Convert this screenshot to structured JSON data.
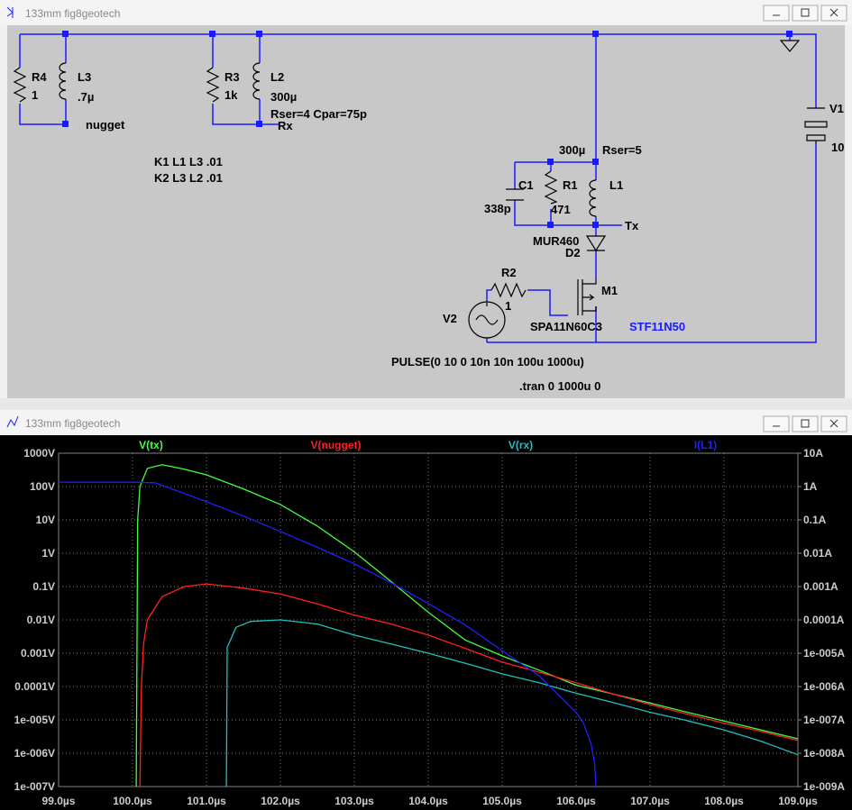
{
  "schematic_window": {
    "title": "133mm fig8geotech"
  },
  "schematic": {
    "labels": [
      "R4",
      "1",
      "L3",
      ".7µ",
      "nugget",
      "R3",
      "1k",
      "L2",
      "300µ",
      "Rser=4 Cpar=75p",
      "Rx",
      "K1 L1 L3 .01",
      "K2 L3 L2 .01",
      "V1",
      "10",
      "300µ",
      "Rser=5",
      "C1",
      "R1",
      "L1",
      "338p",
      "471",
      "Tx",
      "MUR460",
      "D2",
      "R2",
      "1",
      "M1",
      "V2",
      "SPA11N60C3",
      "STF11N50",
      "PULSE(0 10 0 10n 10n 100u 1000u)",
      ".tran 0 1000u 0"
    ]
  },
  "plot_window": {
    "title": "133mm fig8geotech"
  },
  "chart_data": {
    "type": "line",
    "ylog": true,
    "grid": true,
    "xlim": [
      99,
      109
    ],
    "xticks": [
      {
        "value": 99,
        "label": "99.0µs"
      },
      {
        "value": 100,
        "label": "100.0µs"
      },
      {
        "value": 101,
        "label": "101.0µs"
      },
      {
        "value": 102,
        "label": "102.0µs"
      },
      {
        "value": 103,
        "label": "103.0µs"
      },
      {
        "value": 104,
        "label": "104.0µs"
      },
      {
        "value": 105,
        "label": "105.0µs"
      },
      {
        "value": 106,
        "label": "106.0µs"
      },
      {
        "value": 107,
        "label": "107.0µs"
      },
      {
        "value": 108,
        "label": "108.0µs"
      },
      {
        "value": 109,
        "label": "109.0µs"
      }
    ],
    "ylim": [
      1e-07,
      1000
    ],
    "yticks": [
      {
        "value": 1000,
        "label": "1000V"
      },
      {
        "value": 100,
        "label": "100V"
      },
      {
        "value": 10,
        "label": "10V"
      },
      {
        "value": 1,
        "label": "1V"
      },
      {
        "value": 0.1,
        "label": "0.1V"
      },
      {
        "value": 0.01,
        "label": "0.01V"
      },
      {
        "value": 0.001,
        "label": "0.001V"
      },
      {
        "value": 0.0001,
        "label": "0.0001V"
      },
      {
        "value": 1e-05,
        "label": "1e-005V"
      },
      {
        "value": 1e-06,
        "label": "1e-006V"
      },
      {
        "value": 1e-07,
        "label": "1e-007V"
      }
    ],
    "y2lim": [
      1e-09,
      10
    ],
    "y2ticks": [
      {
        "value": 10,
        "label": "10A"
      },
      {
        "value": 1,
        "label": "1A"
      },
      {
        "value": 0.1,
        "label": "0.1A"
      },
      {
        "value": 0.01,
        "label": "0.01A"
      },
      {
        "value": 0.001,
        "label": "0.001A"
      },
      {
        "value": 0.0001,
        "label": "0.0001A"
      },
      {
        "value": 1e-05,
        "label": "1e-005A"
      },
      {
        "value": 1e-06,
        "label": "1e-006A"
      },
      {
        "value": 1e-07,
        "label": "1e-007A"
      },
      {
        "value": 1e-08,
        "label": "1e-008A"
      },
      {
        "value": 1e-09,
        "label": "1e-009A"
      }
    ],
    "series": [
      {
        "name": "V(tx)",
        "color": "#40ff40",
        "x": [
          100.05,
          100.07,
          100.1,
          100.2,
          100.4,
          100.7,
          101,
          101.5,
          102,
          102.5,
          103,
          103.5,
          104,
          104.5,
          105,
          105.5,
          106,
          106.5,
          107,
          107.5,
          108,
          108.5,
          109
        ],
        "values": [
          1e-07,
          10,
          100,
          350,
          450,
          330,
          224,
          85,
          29,
          6.5,
          1.1,
          0.14,
          0.017,
          0.0025,
          0.00083,
          0.00031,
          0.00011,
          6e-05,
          3.2e-05,
          1.7e-05,
          9.3e-06,
          5e-06,
          2.7e-06
        ]
      },
      {
        "name": "V(nugget)",
        "color": "#ff2020",
        "x": [
          100.1,
          100.12,
          100.15,
          100.2,
          100.4,
          100.7,
          101,
          101.5,
          102,
          102.5,
          103,
          103.5,
          104,
          104.5,
          105,
          105.5,
          106,
          106.5,
          107,
          107.5,
          108,
          108.5,
          109
        ],
        "values": [
          1e-07,
          0.0001,
          0.002,
          0.01,
          0.05,
          0.1,
          0.12,
          0.09,
          0.06,
          0.03,
          0.014,
          0.0075,
          0.0035,
          0.0014,
          0.00054,
          0.00027,
          0.00013,
          6e-05,
          2.9e-05,
          1.5e-05,
          8e-06,
          4.5e-06,
          2.4e-06
        ]
      },
      {
        "name": "V(rx)",
        "color": "#20c0c0",
        "x": [
          101.27,
          101.28,
          101.4,
          101.6,
          102,
          102.5,
          103,
          103.5,
          104,
          104.5,
          105,
          105.5,
          106,
          106.5,
          107,
          107.5,
          108,
          108.5,
          109
        ],
        "values": [
          1e-07,
          0.0015,
          0.006,
          0.009,
          0.01,
          0.0075,
          0.0035,
          0.0019,
          0.001,
          0.0005,
          0.00024,
          0.00013,
          6.3e-05,
          3.3e-05,
          1.7e-05,
          9.5e-06,
          5e-06,
          2.3e-06,
          9e-07
        ]
      },
      {
        "name": "I(L1)",
        "color": "#2020ff",
        "axis": "y2",
        "x": [
          99,
          100,
          100.3,
          100.5,
          101,
          101.5,
          102,
          102.5,
          103,
          103.5,
          104,
          104.5,
          105,
          105.5,
          106,
          106.1,
          106.2,
          106.25,
          106.27
        ],
        "values": [
          1.36,
          1.36,
          1.3,
          0.9,
          0.35,
          0.13,
          0.045,
          0.015,
          0.0048,
          0.0013,
          0.00031,
          7e-05,
          1.2e-05,
          2.1e-06,
          1.7e-07,
          8e-08,
          2e-08,
          5e-09,
          1e-09
        ]
      }
    ]
  }
}
